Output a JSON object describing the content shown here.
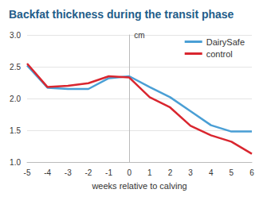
{
  "chart_data": {
    "type": "line",
    "title": "Backfat thickness during the transit phase",
    "y_label": "cm",
    "x_label": "weeks relative to calving",
    "x": [
      -5,
      -4,
      -3,
      -2,
      -1,
      0,
      1,
      2,
      3,
      4,
      5,
      6
    ],
    "series": [
      {
        "name": "DairySafe",
        "color": "#4a9fd5",
        "values": [
          2.52,
          2.17,
          2.15,
          2.15,
          2.32,
          2.35,
          2.18,
          2.02,
          1.8,
          1.58,
          1.48,
          1.48
        ]
      },
      {
        "name": "control",
        "color": "#d9262f",
        "values": [
          2.55,
          2.18,
          2.2,
          2.24,
          2.35,
          2.33,
          2.02,
          1.86,
          1.57,
          1.42,
          1.32,
          1.13
        ]
      }
    ],
    "xlim": [
      -5,
      6
    ],
    "xticks": [
      -5,
      -4,
      -3,
      -2,
      -1,
      0,
      1,
      2,
      3,
      4,
      5,
      6
    ],
    "ylim": [
      1,
      3
    ],
    "yticks": [
      {
        "value": 1,
        "label": "1.0"
      },
      {
        "value": 1.5,
        "label": "1.5"
      },
      {
        "value": 2,
        "label": "2.0"
      },
      {
        "value": 2.5,
        "label": "2.5"
      },
      {
        "value": 3,
        "label": "3.0"
      }
    ],
    "grid": true,
    "legend": "upper right"
  }
}
